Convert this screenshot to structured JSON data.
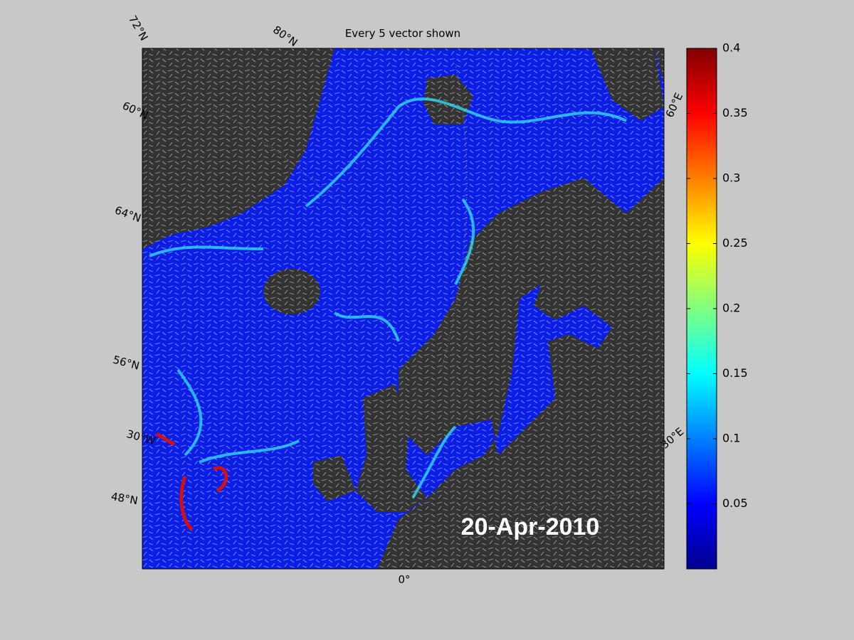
{
  "map": {
    "title": "Every 5 vector shown",
    "date_label": "20-Apr-2010",
    "graticule_labels": [
      "72°N",
      "80°N",
      "60°N",
      "64°N",
      "56°N",
      "30°W",
      "48°N",
      "0°",
      "60°E",
      "30°E"
    ]
  },
  "colorbar": {
    "lim": [
      0,
      0.4
    ],
    "ticks": [
      0.05,
      0.1,
      0.15,
      0.2,
      0.25,
      0.3,
      0.35,
      0.4
    ]
  }
}
